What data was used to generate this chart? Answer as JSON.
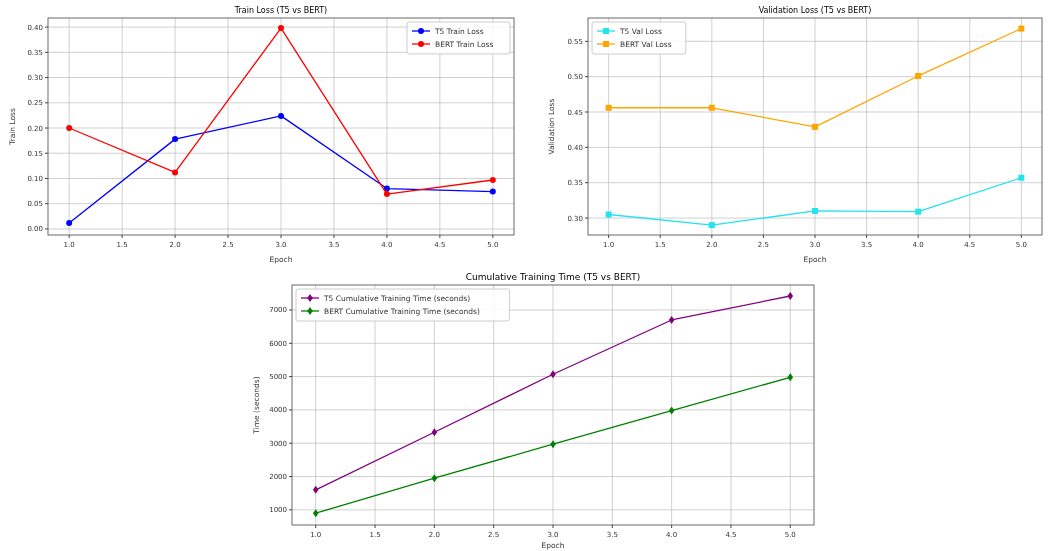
{
  "chart_data": [
    {
      "type": "line",
      "title": "Train Loss (T5 vs BERT)",
      "xlabel": "Epoch",
      "ylabel": "Train Loss",
      "x": [
        1,
        2,
        3,
        4,
        5
      ],
      "xlim": [
        0.8,
        5.2
      ],
      "xticks": [
        {
          "value": 1,
          "label": "1.0"
        },
        {
          "value": 1.5,
          "label": "1.5"
        },
        {
          "value": 2,
          "label": "2.0"
        },
        {
          "value": 2.5,
          "label": "2.5"
        },
        {
          "value": 3,
          "label": "3.0"
        },
        {
          "value": 3.5,
          "label": "3.5"
        },
        {
          "value": 4,
          "label": "4.0"
        },
        {
          "value": 4.5,
          "label": "4.5"
        },
        {
          "value": 5,
          "label": "5.0"
        }
      ],
      "ylim": [
        -0.012,
        0.418
      ],
      "yticks": [
        {
          "value": 0,
          "label": "0.00"
        },
        {
          "value": 0.05,
          "label": "0.05"
        },
        {
          "value": 0.1,
          "label": "0.10"
        },
        {
          "value": 0.15,
          "label": "0.15"
        },
        {
          "value": 0.2,
          "label": "0.20"
        },
        {
          "value": 0.25,
          "label": "0.25"
        },
        {
          "value": 0.3,
          "label": "0.30"
        },
        {
          "value": 0.35,
          "label": "0.35"
        },
        {
          "value": 0.4,
          "label": "0.40"
        }
      ],
      "grid": true,
      "legend": "top right",
      "marker": "circle",
      "line_style": "solid",
      "series": [
        {
          "name": "T5 Train Loss",
          "color": "#0000ff",
          "values": [
            0.012,
            0.178,
            0.224,
            0.08,
            0.074
          ]
        },
        {
          "name": "BERT Train Loss",
          "color": "#ff0000",
          "values": [
            0.2,
            0.112,
            0.398,
            0.069,
            0.097
          ]
        }
      ]
    },
    {
      "type": "line",
      "title": "Validation Loss (T5 vs BERT)",
      "xlabel": "Epoch",
      "ylabel": "Validation Loss",
      "x": [
        1,
        2,
        3,
        4,
        5
      ],
      "xlim": [
        0.8,
        5.2
      ],
      "xticks": [
        {
          "value": 1,
          "label": "1.0"
        },
        {
          "value": 1.5,
          "label": "1.5"
        },
        {
          "value": 2,
          "label": "2.0"
        },
        {
          "value": 2.5,
          "label": "2.5"
        },
        {
          "value": 3,
          "label": "3.0"
        },
        {
          "value": 3.5,
          "label": "3.5"
        },
        {
          "value": 4,
          "label": "4.0"
        },
        {
          "value": 4.5,
          "label": "4.5"
        },
        {
          "value": 5,
          "label": "5.0"
        }
      ],
      "ylim": [
        0.276,
        0.583
      ],
      "yticks": [
        {
          "value": 0.3,
          "label": "0.30"
        },
        {
          "value": 0.35,
          "label": "0.35"
        },
        {
          "value": 0.4,
          "label": "0.40"
        },
        {
          "value": 0.45,
          "label": "0.45"
        },
        {
          "value": 0.5,
          "label": "0.50"
        },
        {
          "value": 0.55,
          "label": "0.55"
        }
      ],
      "grid": true,
      "legend": "top left",
      "marker": "square",
      "line_style": "solid",
      "series": [
        {
          "name": "T5 Val Loss",
          "color": "#22e4ec",
          "values": [
            0.305,
            0.29,
            0.31,
            0.309,
            0.357
          ]
        },
        {
          "name": "BERT Val Loss",
          "color": "#ffa500",
          "values": [
            0.456,
            0.456,
            0.429,
            0.501,
            0.568
          ]
        }
      ]
    },
    {
      "type": "line",
      "title": "Cumulative Training Time (T5 vs BERT)",
      "xlabel": "Epoch",
      "ylabel": "Time (seconds)",
      "x": [
        1,
        2,
        3,
        4,
        5
      ],
      "xlim": [
        0.8,
        5.2
      ],
      "xticks": [
        {
          "value": 1,
          "label": "1.0"
        },
        {
          "value": 1.5,
          "label": "1.5"
        },
        {
          "value": 2,
          "label": "2.0"
        },
        {
          "value": 2.5,
          "label": "2.5"
        },
        {
          "value": 3,
          "label": "3.0"
        },
        {
          "value": 3.5,
          "label": "3.5"
        },
        {
          "value": 4,
          "label": "4.0"
        },
        {
          "value": 4.5,
          "label": "4.5"
        },
        {
          "value": 5,
          "label": "5.0"
        }
      ],
      "ylim": [
        545,
        7750
      ],
      "yticks": [
        1000,
        2000,
        3000,
        4000,
        5000,
        6000,
        7000
      ],
      "grid": true,
      "legend": "top left",
      "marker": "diamond",
      "line_style": "solid",
      "series": [
        {
          "name": "T5 Cumulative Training Time (seconds)",
          "color": "#800080",
          "values": [
            1600,
            3330,
            5070,
            6700,
            7420
          ]
        },
        {
          "name": "BERT Cumulative Training Time (seconds)",
          "color": "#008000",
          "values": [
            900,
            1950,
            2970,
            3980,
            4980
          ]
        }
      ]
    }
  ]
}
